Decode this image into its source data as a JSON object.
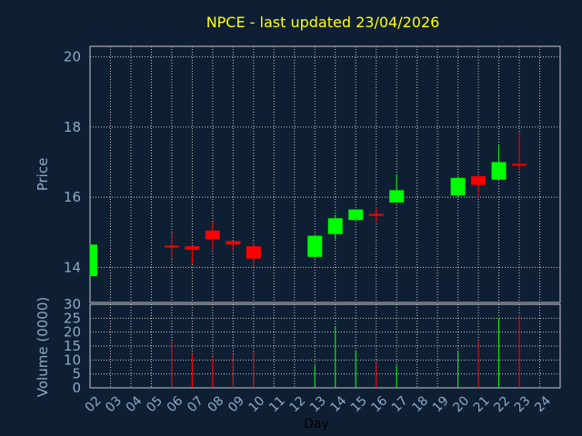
{
  "chart_data": {
    "type": "candlestick",
    "title": "NPCE - last updated 23/04/2026",
    "xlabel": "Day",
    "x_ticks": [
      "02",
      "03",
      "04",
      "05",
      "06",
      "07",
      "08",
      "09",
      "10",
      "11",
      "12",
      "13",
      "14",
      "15",
      "16",
      "17",
      "18",
      "19",
      "20",
      "21",
      "22",
      "23",
      "24"
    ],
    "price_panel": {
      "ylabel": "Price",
      "ylim": [
        13,
        20.3
      ],
      "y_ticks": [
        14,
        16,
        18,
        20
      ],
      "grid": true
    },
    "volume_panel": {
      "ylabel": "Volume (0000)",
      "ylim": [
        0,
        30
      ],
      "y_ticks": [
        0,
        5,
        10,
        15,
        20,
        25,
        30
      ],
      "grid": true
    },
    "candles": [
      {
        "day": "02",
        "open": 13.75,
        "high": 14.65,
        "low": 13.75,
        "close": 14.65,
        "volume": 0
      },
      {
        "day": "06",
        "open": 14.62,
        "high": 15.0,
        "low": 14.25,
        "close": 14.6,
        "volume": 17
      },
      {
        "day": "07",
        "open": 14.6,
        "high": 14.6,
        "low": 14.1,
        "close": 14.5,
        "volume": 12
      },
      {
        "day": "08",
        "open": 15.05,
        "high": 15.3,
        "low": 14.5,
        "close": 14.8,
        "volume": 11
      },
      {
        "day": "09",
        "open": 14.75,
        "high": 14.75,
        "low": 14.45,
        "close": 14.65,
        "volume": 12
      },
      {
        "day": "10",
        "open": 14.6,
        "high": 14.7,
        "low": 14.0,
        "close": 14.25,
        "volume": 13
      },
      {
        "day": "13",
        "open": 14.3,
        "high": 14.9,
        "low": 14.3,
        "close": 14.9,
        "volume": 8
      },
      {
        "day": "14",
        "open": 14.95,
        "high": 15.5,
        "low": 14.8,
        "close": 15.4,
        "volume": 22
      },
      {
        "day": "15",
        "open": 15.35,
        "high": 15.65,
        "low": 15.35,
        "close": 15.65,
        "volume": 13
      },
      {
        "day": "16",
        "open": 15.52,
        "high": 15.72,
        "low": 15.3,
        "close": 15.5,
        "volume": 9
      },
      {
        "day": "17",
        "open": 15.85,
        "high": 16.65,
        "low": 15.85,
        "close": 16.2,
        "volume": 8
      },
      {
        "day": "20",
        "open": 16.05,
        "high": 16.6,
        "low": 16.0,
        "close": 16.55,
        "volume": 13
      },
      {
        "day": "21",
        "open": 16.6,
        "high": 16.6,
        "low": 16.0,
        "close": 16.35,
        "volume": 17
      },
      {
        "day": "22",
        "open": 16.5,
        "high": 17.5,
        "low": 16.5,
        "close": 17.0,
        "volume": 25
      },
      {
        "day": "23",
        "open": 16.95,
        "high": 17.85,
        "low": 16.75,
        "close": 16.9,
        "volume": 26
      }
    ],
    "colors": {
      "up": "#00ff00",
      "down": "#ff0000",
      "grid": "#c8c8c8",
      "axis_text": "#8fa9c8",
      "title": "#ffff00",
      "plot_bg": "#0e1f33"
    }
  }
}
